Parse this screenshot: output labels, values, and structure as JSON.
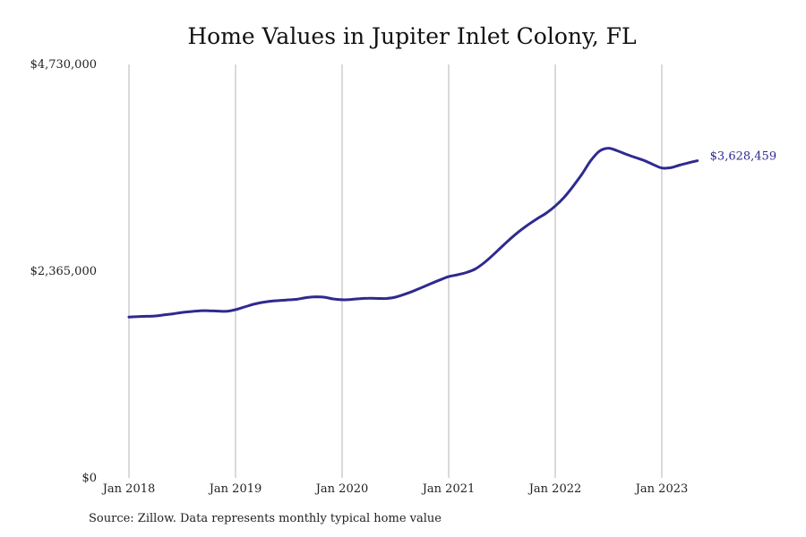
{
  "chart_data": {
    "type": "line",
    "title": "Home Values in Jupiter Inlet Colony, FL",
    "xlabel": "",
    "ylabel": "",
    "source": "Source: Zillow. Data represents monthly typical home value",
    "ylim": [
      0,
      4730000
    ],
    "y_ticks": [
      {
        "value": 0,
        "label": "$0"
      },
      {
        "value": 2365000,
        "label": "$2,365,000"
      },
      {
        "value": 4730000,
        "label": "$4,730,000"
      }
    ],
    "x_ticks": [
      {
        "date": "2018-01",
        "label": "Jan 2018"
      },
      {
        "date": "2019-01",
        "label": "Jan 2019"
      },
      {
        "date": "2020-01",
        "label": "Jan 2020"
      },
      {
        "date": "2021-01",
        "label": "Jan 2021"
      },
      {
        "date": "2022-01",
        "label": "Jan 2022"
      },
      {
        "date": "2023-01",
        "label": "Jan 2023"
      }
    ],
    "grid": "vertical",
    "series": [
      {
        "color": "#2e2a8f",
        "last_label": "$3,628,459",
        "x": [
          "2018-01",
          "2018-02",
          "2018-03",
          "2018-04",
          "2018-05",
          "2018-06",
          "2018-07",
          "2018-08",
          "2018-09",
          "2018-10",
          "2018-11",
          "2018-12",
          "2019-01",
          "2019-02",
          "2019-03",
          "2019-04",
          "2019-05",
          "2019-06",
          "2019-07",
          "2019-08",
          "2019-09",
          "2019-10",
          "2019-11",
          "2019-12",
          "2020-01",
          "2020-02",
          "2020-03",
          "2020-04",
          "2020-05",
          "2020-06",
          "2020-07",
          "2020-08",
          "2020-09",
          "2020-10",
          "2020-11",
          "2020-12",
          "2021-01",
          "2021-02",
          "2021-03",
          "2021-04",
          "2021-05",
          "2021-06",
          "2021-07",
          "2021-08",
          "2021-09",
          "2021-10",
          "2021-11",
          "2021-12",
          "2022-01",
          "2022-02",
          "2022-03",
          "2022-04",
          "2022-05",
          "2022-06",
          "2022-07",
          "2022-08",
          "2022-09",
          "2022-10",
          "2022-11",
          "2022-12",
          "2023-01",
          "2023-02",
          "2023-03",
          "2023-04",
          "2023-05"
        ],
        "values": [
          1840000,
          1846000,
          1849000,
          1853000,
          1865000,
          1878000,
          1893000,
          1903000,
          1912000,
          1912000,
          1908000,
          1906000,
          1925000,
          1955000,
          1986000,
          2008000,
          2022000,
          2030000,
          2037000,
          2046000,
          2063000,
          2072000,
          2067000,
          2048000,
          2038000,
          2041000,
          2051000,
          2055000,
          2053000,
          2053000,
          2068000,
          2100000,
          2137000,
          2180000,
          2223000,
          2265000,
          2303000,
          2324000,
          2350000,
          2391000,
          2462000,
          2551000,
          2647000,
          2740000,
          2825000,
          2900000,
          2968000,
          3030000,
          3110000,
          3210000,
          3335000,
          3475000,
          3630000,
          3740000,
          3772000,
          3742000,
          3702000,
          3666000,
          3631000,
          3586000,
          3545000,
          3549000,
          3578000,
          3605000,
          3628459
        ]
      }
    ]
  }
}
